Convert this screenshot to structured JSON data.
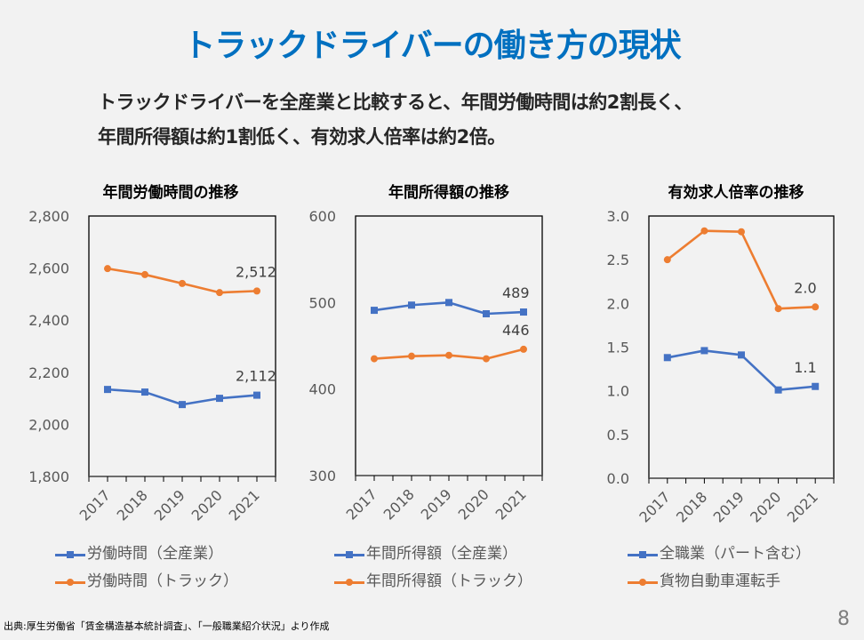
{
  "page": {
    "title": "トラックドライバーの働き方の現状",
    "subtitle_lines": [
      "トラックドライバーを全産業と比較すると、年間労働時間は約2割長く、",
      "年間所得額は約1割低く、有効求人倍率は約2倍。"
    ],
    "source": "出典:厚生労働省「賃金構造基本統計調査」、「一般職業紹介状況」より作成",
    "page_number": "8"
  },
  "colors": {
    "blue": "#4472c4",
    "orange": "#ed7d31",
    "title_blue": "#0070c0"
  },
  "chart_data": [
    {
      "type": "line",
      "title": "年間労働時間の推移",
      "categories": [
        "2017",
        "2018",
        "2019",
        "2020",
        "2021"
      ],
      "ylim": [
        1800,
        2800
      ],
      "yticks": [
        1800,
        2000,
        2200,
        2400,
        2600,
        2800
      ],
      "ytick_labels": [
        "1,800",
        "2,000",
        "2,200",
        "2,400",
        "2,600",
        "2,800"
      ],
      "xlabel": "",
      "ylabel": "",
      "grid": false,
      "legend": "bottom",
      "series": [
        {
          "name": "労働時間（全産業）",
          "color": "#4472c4",
          "marker": "square",
          "values": [
            2134,
            2124,
            2076,
            2100,
            2112
          ],
          "end_label": "2,112"
        },
        {
          "name": "労働時間（トラック）",
          "color": "#ed7d31",
          "marker": "circle",
          "values": [
            2598,
            2575,
            2541,
            2506,
            2512
          ],
          "end_label": "2,512"
        }
      ]
    },
    {
      "type": "line",
      "title": "年間所得額の推移",
      "categories": [
        "2017",
        "2018",
        "2019",
        "2020",
        "2021"
      ],
      "ylim": [
        300,
        600
      ],
      "yticks": [
        300,
        400,
        500,
        600
      ],
      "ytick_labels": [
        "300",
        "400",
        "500",
        "600"
      ],
      "xlabel": "",
      "ylabel": "",
      "grid": false,
      "legend": "bottom",
      "series": [
        {
          "name": "年間所得額（全産業）",
          "color": "#4472c4",
          "marker": "square",
          "values": [
            491,
            497,
            500,
            487,
            489
          ],
          "end_label": "489"
        },
        {
          "name": "年間所得額（トラック）",
          "color": "#ed7d31",
          "marker": "circle",
          "values": [
            435,
            438,
            439,
            435,
            446
          ],
          "end_label": "446"
        }
      ]
    },
    {
      "type": "line",
      "title": "有効求人倍率の推移",
      "categories": [
        "2017",
        "2018",
        "2019",
        "2020",
        "2021"
      ],
      "ylim": [
        0,
        3.0
      ],
      "yticks": [
        0,
        0.5,
        1.0,
        1.5,
        2.0,
        2.5,
        3.0
      ],
      "ytick_labels": [
        "0.0",
        "0.5",
        "1.0",
        "1.5",
        "2.0",
        "2.5",
        "3.0"
      ],
      "xlabel": "",
      "ylabel": "",
      "grid": false,
      "legend": "bottom",
      "series": [
        {
          "name": "全職業（パート含む）",
          "color": "#4472c4",
          "marker": "square",
          "values": [
            1.38,
            1.46,
            1.41,
            1.01,
            1.05
          ],
          "end_label": "1.1"
        },
        {
          "name": "貨物自動車運転手",
          "color": "#ed7d31",
          "marker": "circle",
          "values": [
            2.5,
            2.83,
            2.82,
            1.94,
            1.96
          ],
          "end_label": "2.0"
        }
      ]
    }
  ]
}
